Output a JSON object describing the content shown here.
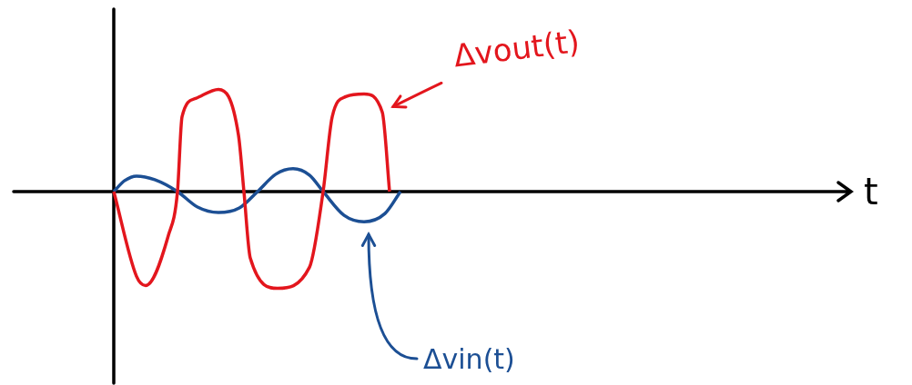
{
  "chart_data": {
    "type": "line",
    "x_label": "t",
    "tick_labels": false,
    "grid": false,
    "xlim": [
      -11,
      81
    ],
    "ylim": [
      -21,
      20
    ],
    "series": [
      {
        "name": "Δvout(t)",
        "color": "#e3161d",
        "line_style": "solid",
        "marker": "none",
        "x": [
          0,
          2.5,
          3.5,
          6,
          7,
          7.5,
          9,
          11.5,
          13.7,
          14.3,
          15,
          18,
          21.5,
          23,
          24,
          25.5,
          27.5,
          29.5,
          30.3
        ],
        "values": [
          0,
          -9.3,
          -10.3,
          -4.8,
          0,
          8.2,
          10.2,
          11.2,
          6.2,
          0,
          -7.3,
          -10.6,
          -8.3,
          0,
          8.2,
          10.4,
          10.7,
          8.7,
          0
        ]
      },
      {
        "name": "Δvin(t)",
        "color": "#1c4f94",
        "line_style": "solid",
        "marker": "none",
        "x": [
          0,
          1.2,
          2.5,
          4.5,
          7,
          9.2,
          11.5,
          13.8,
          15.8,
          17.8,
          19.7,
          21.5,
          23,
          25.3,
          27.5,
          29.8,
          31.5
        ],
        "values": [
          0,
          1.2,
          1.7,
          1.3,
          0,
          -1.7,
          -2.3,
          -1.8,
          0,
          1.9,
          2.5,
          1.8,
          0,
          -2.6,
          -3.3,
          -2.4,
          0
        ]
      }
    ]
  }
}
